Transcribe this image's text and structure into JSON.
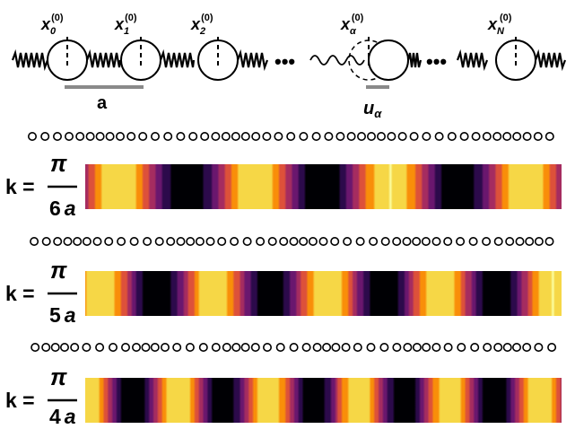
{
  "lattice": {
    "sites": [
      {
        "base": "x",
        "sub": "0",
        "sup": "(0)"
      },
      {
        "base": "x",
        "sub": "1",
        "sup": "(0)"
      },
      {
        "base": "x",
        "sub": "2",
        "sup": "(0)"
      },
      {
        "base": "x",
        "sub": "α",
        "sup": "(0)"
      },
      {
        "base": "x",
        "sub": "N",
        "sup": "(0)"
      }
    ],
    "ellipsis": "•••",
    "spacing_label": "a",
    "displacement_label": {
      "base": "u",
      "sub": "α"
    }
  },
  "panels": [
    {
      "k_prefix": "k =",
      "numerator": "π",
      "denominator_number": "6",
      "denominator_symbol": "a",
      "wavelength_sites": 12,
      "phase": 0.0
    },
    {
      "k_prefix": "k =",
      "numerator": "π",
      "denominator_number": "5",
      "denominator_symbol": "a",
      "wavelength_sites": 10,
      "phase": 0.7
    },
    {
      "k_prefix": "k =",
      "numerator": "π",
      "denominator_number": "4",
      "denominator_symbol": "a",
      "wavelength_sites": 8,
      "phase": 1.4
    }
  ],
  "colormap": [
    "#000004",
    "#2c0a4b",
    "#6a176e",
    "#a52c60",
    "#dd513a",
    "#f98e09",
    "#f6d746",
    "#fcffa4"
  ]
}
